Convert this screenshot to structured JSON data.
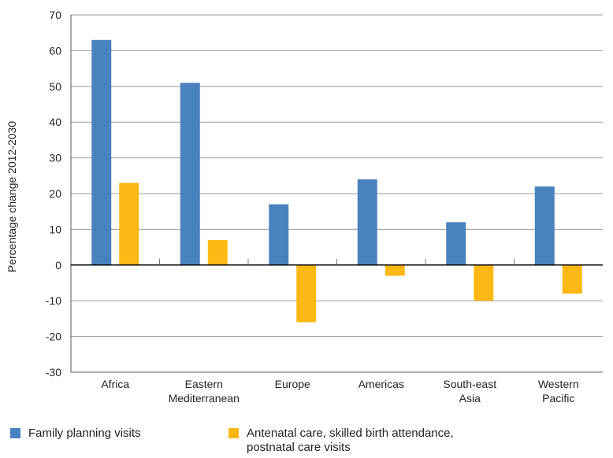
{
  "chart_data": {
    "type": "bar",
    "categories": [
      [
        "Africa"
      ],
      [
        "Eastern",
        "Mediterranean"
      ],
      [
        "Europe"
      ],
      [
        "Americas"
      ],
      [
        "South-east",
        "Asia"
      ],
      [
        "Western",
        "Pacific"
      ]
    ],
    "series": [
      {
        "name": "Family planning visits",
        "color": "#4a81bf",
        "values": [
          63,
          51,
          17,
          24,
          12,
          22
        ]
      },
      {
        "name": "Antenatal care, skilled birth attendance, postnatal care visits",
        "name_lines": [
          "Antenatal care, skilled birth attendance,",
          "postnatal care visits"
        ],
        "color": "#fdb813",
        "values": [
          23,
          7,
          -16,
          -3,
          -10,
          -8
        ]
      }
    ],
    "ylabel": "Percentage change 2012-2030",
    "ylim": [
      -30,
      70
    ],
    "yticks": [
      -30,
      -20,
      -10,
      0,
      10,
      20,
      30,
      40,
      50,
      60,
      70
    ],
    "grid": true,
    "legend": "bottom"
  }
}
